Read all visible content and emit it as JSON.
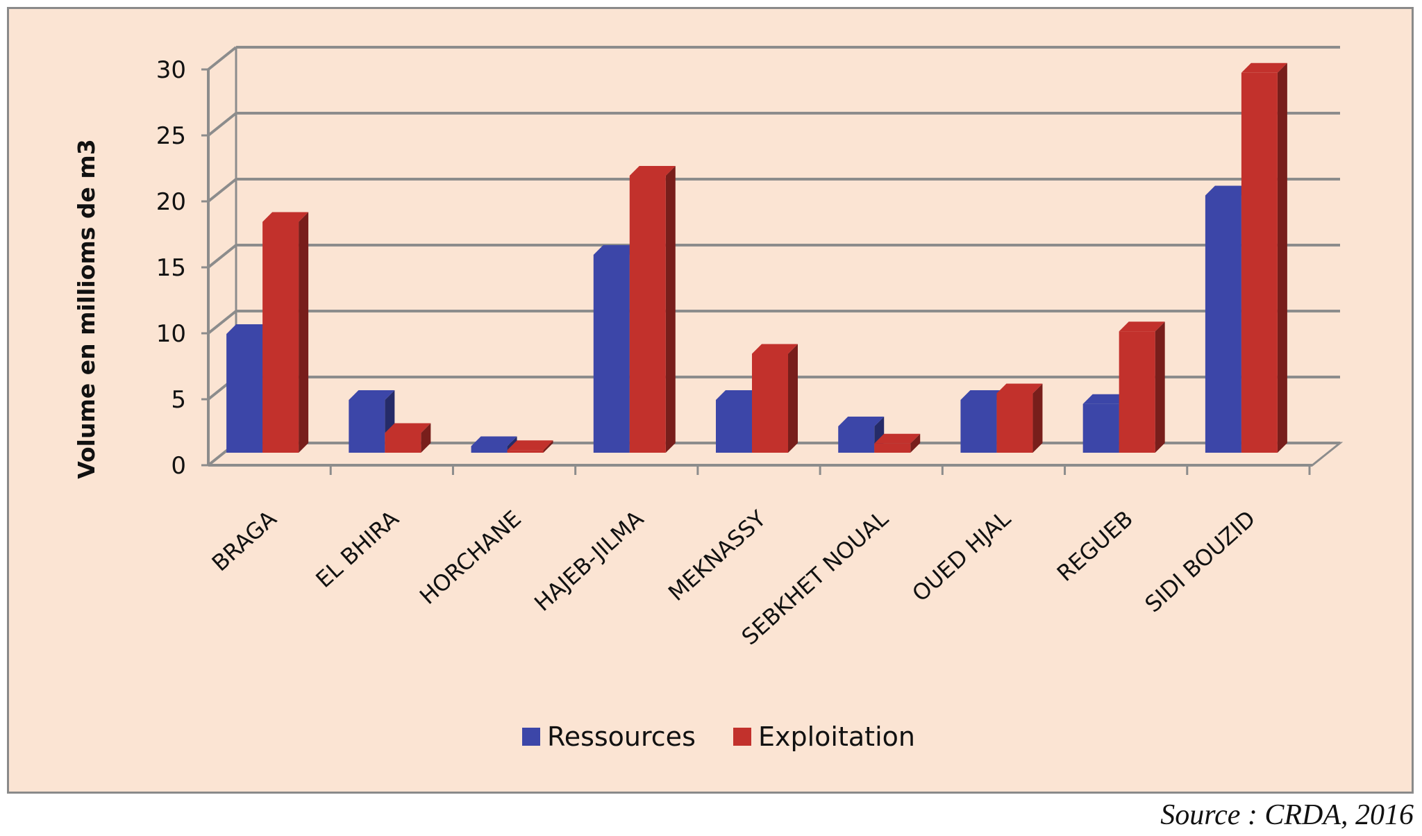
{
  "chart_data": {
    "type": "bar",
    "style": "3d-clustered-column",
    "title": "",
    "xlabel": "",
    "ylabel": "Volume en millioms de m3",
    "ylim": [
      0,
      30
    ],
    "yticks": [
      0,
      5,
      10,
      15,
      20,
      25,
      30
    ],
    "grid": true,
    "legend_position": "bottom-center",
    "categories": [
      "BRAGA",
      "EL BHIRA",
      "HORCHANE",
      "HAJEB-JILMA",
      "MEKNASSY",
      "SEBKHET NOUAL",
      "OUED HJAL",
      "REGUEB",
      "SIDI BOUZID"
    ],
    "series": [
      {
        "name": "Ressources",
        "color": "#3c46a8",
        "values": [
          9,
          4,
          0.5,
          15,
          4,
          2,
          4,
          3.7,
          19.5
        ]
      },
      {
        "name": "Exploitation",
        "color": "#c2312c",
        "values": [
          17.5,
          1.5,
          0.2,
          21,
          7.5,
          0.7,
          4.5,
          9.2,
          28.8
        ]
      }
    ]
  },
  "source": "Source : CRDA, 2016",
  "colors": {
    "background": "#fbe4d3",
    "gridline": "#8c8c8c"
  }
}
